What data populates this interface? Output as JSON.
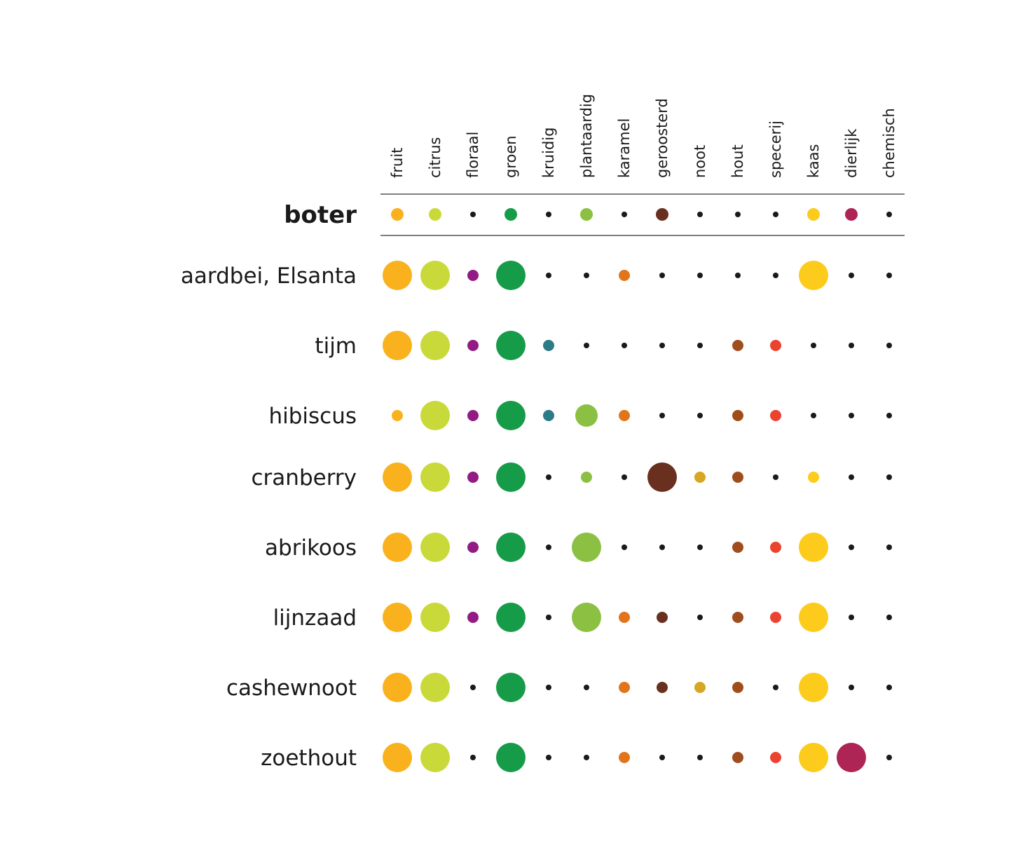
{
  "chart_data": {
    "type": "scatter",
    "title": "",
    "columns": [
      "fruit",
      "citrus",
      "floraal",
      "groen",
      "kruidig",
      "plantaardig",
      "karamel",
      "geroosterd",
      "noot",
      "hout",
      "specerij",
      "kaas",
      "dierlijk",
      "chemisch"
    ],
    "colors": [
      "#f9b21d",
      "#cad93a",
      "#921c83",
      "#169c48",
      "#2d7b85",
      "#8bc043",
      "#e1751b",
      "#693020",
      "#d7a622",
      "#a04d1d",
      "#ec4330",
      "#fdcb1c",
      "#ad2455",
      "#1a1a1a"
    ],
    "levels": "0 = absent (small dark dot), 1 = low, 2 = medium, 3 = high",
    "header_row": {
      "name": "boter",
      "values": [
        1,
        1,
        0,
        1,
        0,
        1,
        0,
        1,
        0,
        0,
        0,
        1,
        1,
        0
      ]
    },
    "rows": [
      {
        "name": "aardbei, Elsanta",
        "values": [
          3,
          3,
          1,
          3,
          0,
          0,
          1,
          0,
          0,
          0,
          0,
          3,
          0,
          0
        ]
      },
      {
        "name": "tijm",
        "values": [
          3,
          3,
          1,
          3,
          1,
          0,
          0,
          0,
          0,
          1,
          1,
          0,
          0,
          0
        ]
      },
      {
        "name": "hibiscus",
        "values": [
          1,
          3,
          1,
          3,
          1,
          2,
          1,
          0,
          0,
          1,
          1,
          0,
          0,
          0
        ]
      },
      {
        "name": "cranberry",
        "values": [
          3,
          3,
          1,
          3,
          0,
          1,
          0,
          3,
          1,
          1,
          0,
          1,
          0,
          0
        ]
      },
      {
        "name": "abrikoos",
        "values": [
          3,
          3,
          1,
          3,
          0,
          3,
          0,
          0,
          0,
          1,
          1,
          3,
          0,
          0
        ]
      },
      {
        "name": "lijnzaad",
        "values": [
          3,
          3,
          1,
          3,
          0,
          3,
          1,
          1,
          0,
          1,
          1,
          3,
          0,
          0
        ]
      },
      {
        "name": "cashewnoot",
        "values": [
          3,
          3,
          0,
          3,
          0,
          0,
          1,
          1,
          1,
          1,
          0,
          3,
          0,
          0
        ]
      },
      {
        "name": "zoethout",
        "values": [
          3,
          3,
          0,
          3,
          0,
          0,
          1,
          0,
          0,
          1,
          1,
          3,
          3,
          0
        ]
      }
    ]
  }
}
